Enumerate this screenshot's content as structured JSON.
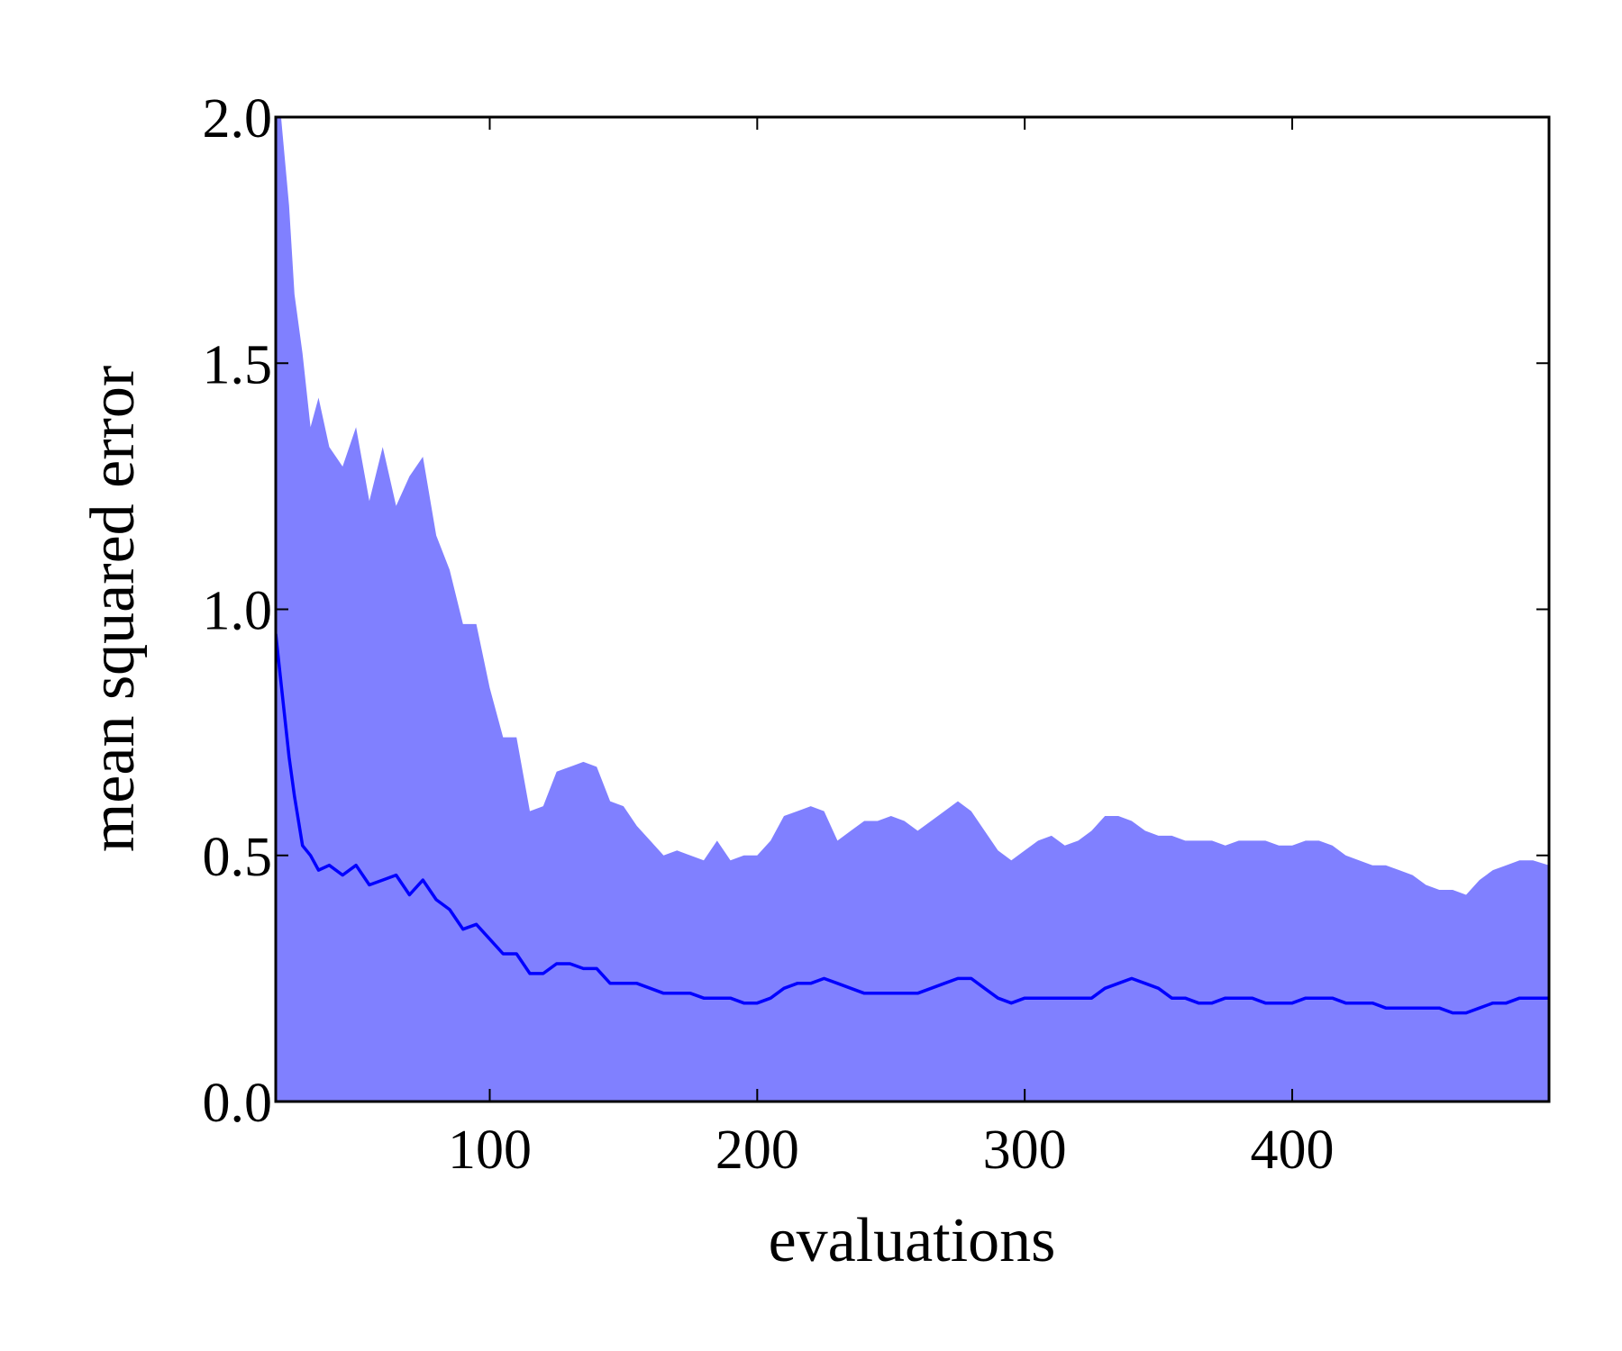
{
  "chart_data": {
    "type": "line",
    "xlabel": "evaluations",
    "ylabel": "mean squared error",
    "xlim": [
      20,
      496
    ],
    "ylim": [
      0,
      2
    ],
    "xticks": [
      100,
      200,
      300,
      400
    ],
    "yticks": [
      {
        "value": 0,
        "label": "0.0"
      },
      {
        "value": 0.5,
        "label": "0.5"
      },
      {
        "value": 1,
        "label": "1.0"
      },
      {
        "value": 1.5,
        "label": "1.5"
      },
      {
        "value": 2,
        "label": "2.0"
      }
    ],
    "x": [
      20,
      22,
      25,
      27,
      30,
      33,
      36,
      40,
      45,
      50,
      55,
      60,
      65,
      70,
      75,
      80,
      85,
      90,
      95,
      100,
      105,
      110,
      115,
      120,
      125,
      130,
      135,
      140,
      145,
      150,
      155,
      160,
      165,
      170,
      175,
      180,
      185,
      190,
      195,
      200,
      205,
      210,
      215,
      220,
      225,
      230,
      235,
      240,
      245,
      250,
      255,
      260,
      265,
      270,
      275,
      280,
      285,
      290,
      295,
      300,
      305,
      310,
      315,
      320,
      325,
      330,
      335,
      340,
      345,
      350,
      355,
      360,
      365,
      370,
      375,
      380,
      385,
      390,
      395,
      400,
      405,
      410,
      415,
      420,
      425,
      430,
      435,
      440,
      445,
      450,
      455,
      460,
      465,
      470,
      475,
      480,
      485,
      490,
      496
    ],
    "series": [
      {
        "style": "area",
        "color": "#8080ff",
        "values": [
          2.0,
          2.0,
          1.82,
          1.64,
          1.52,
          1.37,
          1.43,
          1.33,
          1.29,
          1.37,
          1.22,
          1.33,
          1.21,
          1.27,
          1.31,
          1.15,
          1.08,
          0.97,
          0.97,
          0.84,
          0.74,
          0.74,
          0.59,
          0.6,
          0.67,
          0.68,
          0.69,
          0.68,
          0.61,
          0.6,
          0.56,
          0.53,
          0.5,
          0.51,
          0.5,
          0.49,
          0.53,
          0.49,
          0.5,
          0.5,
          0.53,
          0.58,
          0.59,
          0.6,
          0.59,
          0.53,
          0.55,
          0.57,
          0.57,
          0.58,
          0.57,
          0.55,
          0.57,
          0.59,
          0.61,
          0.59,
          0.55,
          0.51,
          0.49,
          0.51,
          0.53,
          0.54,
          0.52,
          0.53,
          0.55,
          0.58,
          0.58,
          0.57,
          0.55,
          0.54,
          0.54,
          0.53,
          0.53,
          0.53,
          0.52,
          0.53,
          0.53,
          0.53,
          0.52,
          0.52,
          0.53,
          0.53,
          0.52,
          0.5,
          0.49,
          0.48,
          0.48,
          0.47,
          0.46,
          0.44,
          0.43,
          0.43,
          0.42,
          0.45,
          0.47,
          0.48,
          0.49,
          0.49,
          0.48
        ]
      },
      {
        "style": "line",
        "color": "#0000ff",
        "values": [
          0.95,
          0.85,
          0.7,
          0.62,
          0.52,
          0.5,
          0.47,
          0.48,
          0.46,
          0.48,
          0.44,
          0.45,
          0.46,
          0.42,
          0.45,
          0.41,
          0.39,
          0.35,
          0.36,
          0.33,
          0.3,
          0.3,
          0.26,
          0.26,
          0.28,
          0.28,
          0.27,
          0.27,
          0.24,
          0.24,
          0.24,
          0.23,
          0.22,
          0.22,
          0.22,
          0.21,
          0.21,
          0.21,
          0.2,
          0.2,
          0.21,
          0.23,
          0.24,
          0.24,
          0.25,
          0.24,
          0.23,
          0.22,
          0.22,
          0.22,
          0.22,
          0.22,
          0.23,
          0.24,
          0.25,
          0.25,
          0.23,
          0.21,
          0.2,
          0.21,
          0.21,
          0.21,
          0.21,
          0.21,
          0.21,
          0.23,
          0.24,
          0.25,
          0.24,
          0.23,
          0.21,
          0.21,
          0.2,
          0.2,
          0.21,
          0.21,
          0.21,
          0.2,
          0.2,
          0.2,
          0.21,
          0.21,
          0.21,
          0.2,
          0.2,
          0.2,
          0.19,
          0.19,
          0.19,
          0.19,
          0.19,
          0.18,
          0.18,
          0.19,
          0.2,
          0.2,
          0.21,
          0.21,
          0.21
        ]
      }
    ]
  }
}
